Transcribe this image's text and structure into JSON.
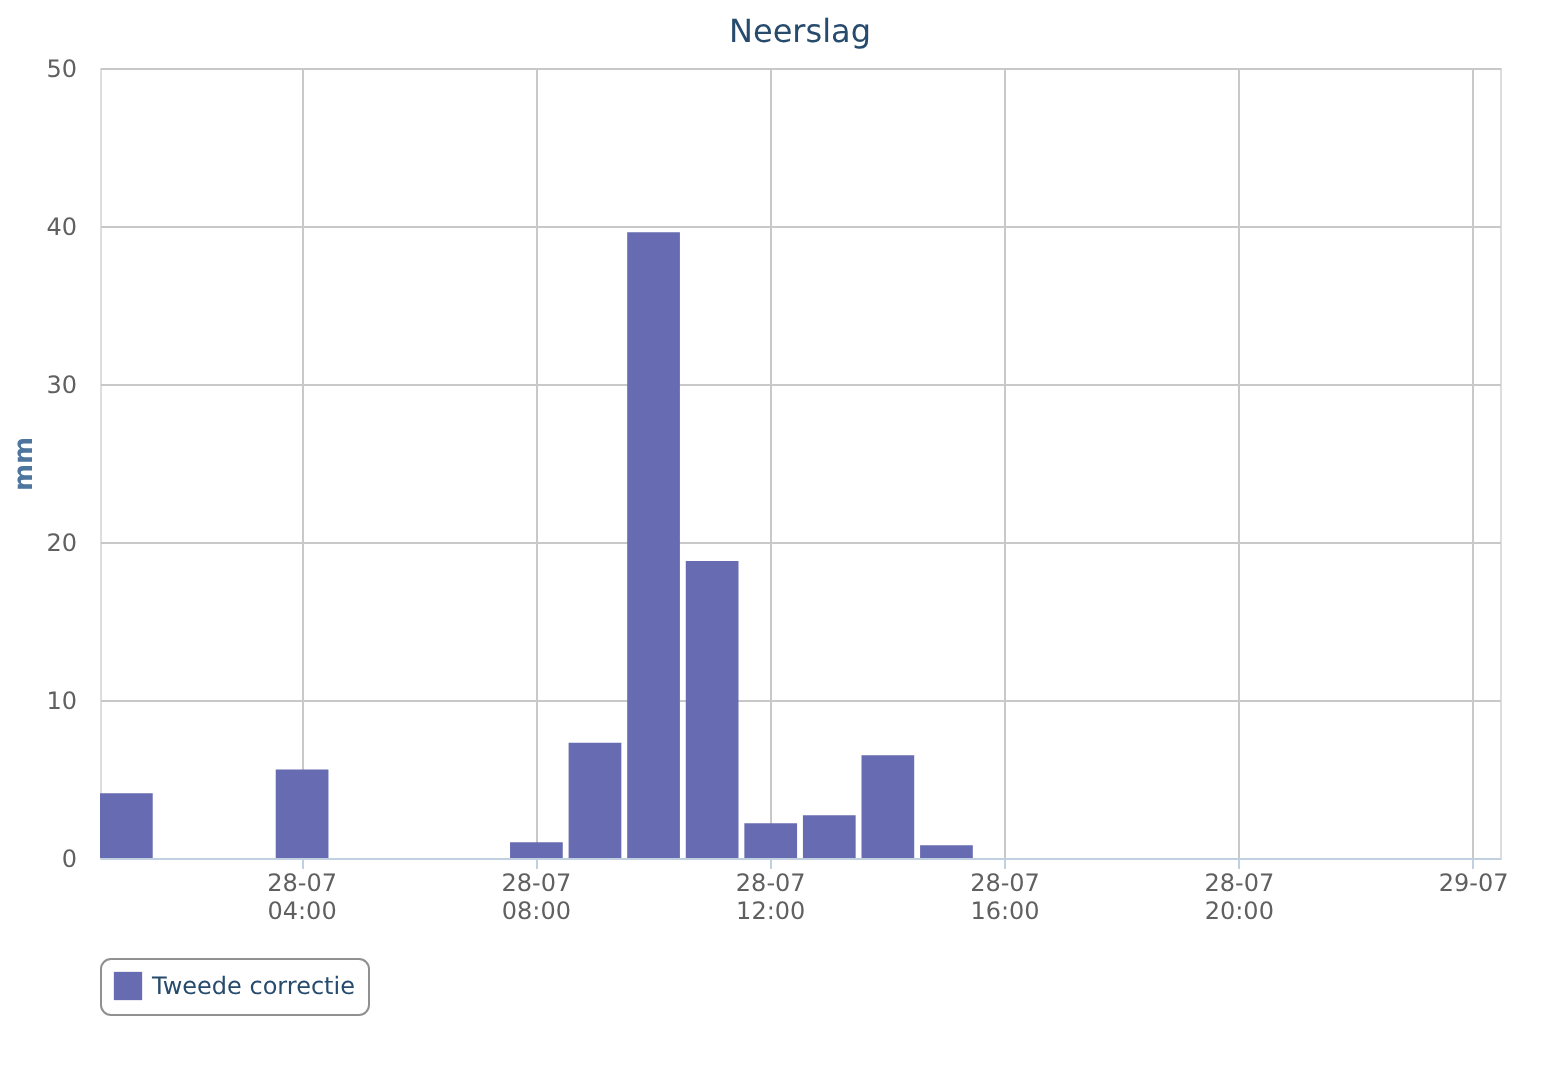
{
  "chart_data": {
    "type": "bar",
    "title": "Neerslag",
    "ylabel": "mm",
    "categories": [
      null,
      null,
      null,
      "28-07 04:00",
      null,
      null,
      null,
      "28-07 08:00",
      null,
      null,
      null,
      "28-07 12:00",
      null,
      null,
      null,
      "28-07 16:00",
      null,
      null,
      null,
      "28-07 20:00",
      null,
      null,
      null,
      "29-07"
    ],
    "series": [
      {
        "name": "Tweede correctie",
        "color": "#676bb2",
        "values": [
          4.1,
          null,
          null,
          5.6,
          null,
          null,
          null,
          1.0,
          7.3,
          39.6,
          18.8,
          2.2,
          2.7,
          6.5,
          0.8,
          null,
          null,
          null,
          null,
          null,
          null,
          null,
          null,
          null
        ]
      }
    ],
    "ylim": [
      0,
      50
    ],
    "yticks": [
      0,
      10,
      20,
      30,
      40,
      50
    ],
    "grid": true,
    "legend": "bottom"
  }
}
